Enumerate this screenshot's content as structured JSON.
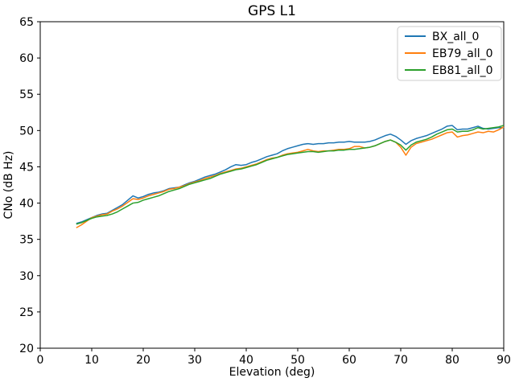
{
  "title": "GPS L1",
  "chart_data": {
    "type": "line",
    "title": "GPS L1",
    "xlabel": "Elevation (deg)",
    "ylabel": "CNo (dB Hz)",
    "xlim": [
      0,
      90
    ],
    "ylim": [
      20,
      65
    ],
    "xticks": [
      0,
      10,
      20,
      30,
      40,
      50,
      60,
      70,
      80,
      90
    ],
    "yticks": [
      20,
      25,
      30,
      35,
      40,
      45,
      50,
      55,
      60,
      65
    ],
    "grid": false,
    "legend_position": "upper right",
    "x": [
      7,
      8,
      9,
      10,
      11,
      12,
      13,
      14,
      15,
      16,
      17,
      18,
      19,
      20,
      21,
      22,
      23,
      24,
      25,
      26,
      27,
      28,
      29,
      30,
      31,
      32,
      33,
      34,
      35,
      36,
      37,
      38,
      39,
      40,
      41,
      42,
      43,
      44,
      45,
      46,
      47,
      48,
      49,
      50,
      51,
      52,
      53,
      54,
      55,
      56,
      57,
      58,
      59,
      60,
      61,
      62,
      63,
      64,
      65,
      66,
      67,
      68,
      69,
      70,
      71,
      72,
      73,
      74,
      75,
      76,
      77,
      78,
      79,
      80,
      81,
      82,
      83,
      84,
      85,
      86,
      87,
      88,
      89,
      90
    ],
    "series": [
      {
        "name": "BX_all_0",
        "color": "#1f77b4",
        "values": [
          37.2,
          37.4,
          37.7,
          38.0,
          38.3,
          38.5,
          38.6,
          39.0,
          39.4,
          39.8,
          40.4,
          41.0,
          40.7,
          40.9,
          41.2,
          41.4,
          41.5,
          41.7,
          42.0,
          42.1,
          42.2,
          42.5,
          42.8,
          43.0,
          43.3,
          43.6,
          43.8,
          44.0,
          44.3,
          44.6,
          45.0,
          45.3,
          45.2,
          45.3,
          45.6,
          45.8,
          46.1,
          46.4,
          46.6,
          46.8,
          47.2,
          47.5,
          47.7,
          47.9,
          48.1,
          48.2,
          48.1,
          48.2,
          48.2,
          48.3,
          48.3,
          48.4,
          48.4,
          48.5,
          48.4,
          48.4,
          48.4,
          48.5,
          48.7,
          49.0,
          49.3,
          49.5,
          49.2,
          48.7,
          48.1,
          48.6,
          48.9,
          49.1,
          49.3,
          49.6,
          49.9,
          50.2,
          50.6,
          50.7,
          50.1,
          50.2,
          50.2,
          50.4,
          50.6,
          50.3,
          50.2,
          50.3,
          50.4,
          50.4
        ]
      },
      {
        "name": "EB79_all_0",
        "color": "#ff7f0e",
        "values": [
          36.6,
          37.0,
          37.5,
          38.0,
          38.2,
          38.4,
          38.5,
          38.9,
          39.2,
          39.6,
          40.1,
          40.6,
          40.5,
          40.7,
          41.0,
          41.2,
          41.4,
          41.6,
          41.9,
          42.0,
          42.2,
          42.4,
          42.7,
          42.9,
          43.1,
          43.4,
          43.6,
          43.8,
          44.1,
          44.3,
          44.5,
          44.7,
          44.8,
          45.0,
          45.2,
          45.4,
          45.7,
          46.0,
          46.2,
          46.3,
          46.6,
          46.8,
          46.9,
          47.0,
          47.2,
          47.4,
          47.2,
          47.1,
          47.2,
          47.2,
          47.3,
          47.4,
          47.4,
          47.5,
          47.8,
          47.8,
          47.6,
          47.7,
          47.9,
          48.2,
          48.5,
          48.7,
          48.4,
          47.7,
          46.6,
          47.7,
          48.2,
          48.4,
          48.6,
          48.8,
          49.1,
          49.4,
          49.7,
          49.8,
          49.1,
          49.3,
          49.4,
          49.6,
          49.8,
          49.7,
          49.9,
          49.8,
          50.1,
          50.5
        ]
      },
      {
        "name": "EB81_all_0",
        "color": "#2ca02c",
        "values": [
          37.1,
          37.3,
          37.6,
          37.9,
          38.1,
          38.2,
          38.3,
          38.5,
          38.8,
          39.2,
          39.6,
          40.0,
          40.1,
          40.4,
          40.6,
          40.8,
          41.0,
          41.3,
          41.6,
          41.8,
          42.0,
          42.3,
          42.6,
          42.8,
          43.0,
          43.2,
          43.4,
          43.7,
          44.0,
          44.2,
          44.4,
          44.6,
          44.7,
          44.9,
          45.1,
          45.3,
          45.6,
          45.9,
          46.1,
          46.3,
          46.5,
          46.7,
          46.8,
          46.9,
          47.0,
          47.1,
          47.1,
          47.0,
          47.1,
          47.2,
          47.2,
          47.3,
          47.3,
          47.4,
          47.4,
          47.5,
          47.6,
          47.7,
          47.9,
          48.2,
          48.5,
          48.7,
          48.4,
          48.0,
          47.3,
          48.0,
          48.4,
          48.6,
          48.8,
          49.1,
          49.5,
          49.8,
          50.1,
          50.2,
          49.8,
          49.9,
          49.9,
          50.1,
          50.4,
          50.2,
          50.3,
          50.4,
          50.5,
          50.7
        ]
      }
    ]
  },
  "colors": {
    "axis": "#000000",
    "legend_border": "#cccccc",
    "background": "#ffffff"
  }
}
